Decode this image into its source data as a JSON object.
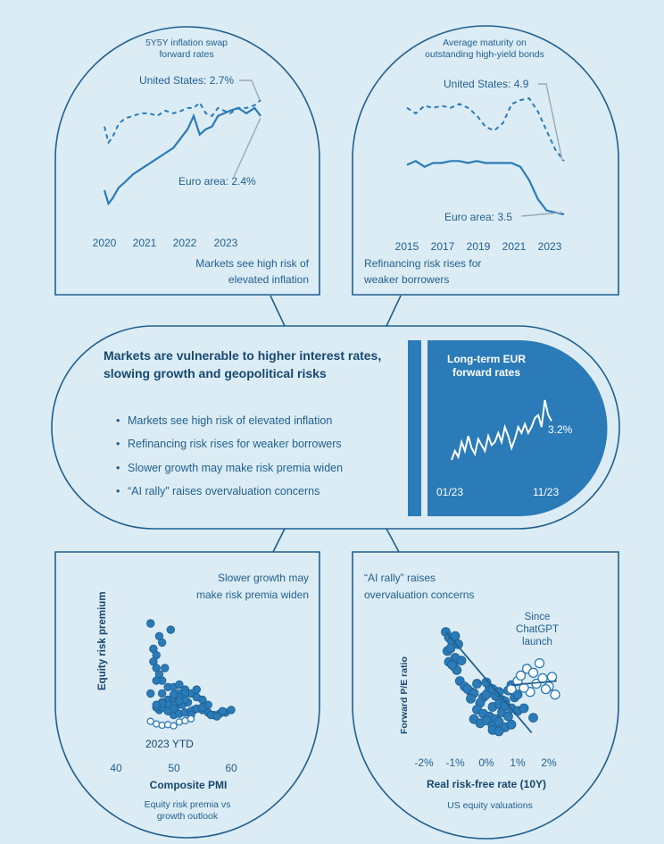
{
  "top_left": {
    "title_lines": [
      "5Y5Y inflation swap",
      "forward rates"
    ],
    "label_us": "United States: 2.7%",
    "label_ea": "Euro area: 2.4%",
    "x_ticks": [
      "2020",
      "2021",
      "2022",
      "2023"
    ],
    "caption_lines": [
      "Markets see high risk of",
      "elevated inflation"
    ]
  },
  "top_right": {
    "title_lines": [
      "Average maturity on",
      "outstanding high-yield bonds"
    ],
    "label_us": "United States: 4.9",
    "label_ea": "Euro area: 3.5",
    "x_ticks": [
      "2015",
      "2017",
      "2019",
      "2021",
      "2023"
    ],
    "caption_lines": [
      "Refinancing risk rises for",
      "weaker borrowers"
    ]
  },
  "center": {
    "headline_lines": [
      "Markets are vulnerable to higher interest rates,",
      "slowing growth and geopolitical risks"
    ],
    "bullets": [
      "Markets see high risk of elevated inflation",
      "Refinancing risk rises for weaker borrowers",
      "Slower growth may make risk premia widen",
      "“AI rally” raises overvaluation concerns"
    ],
    "bullet_marker": "•",
    "panel_title_lines": [
      "Long-term EUR",
      "forward rates"
    ],
    "panel_value": "3.2%",
    "panel_x_start": "01/23",
    "panel_x_end": "11/23"
  },
  "bottom_left": {
    "title_lines": [
      "Slower growth may",
      "make risk premia widen"
    ],
    "ylabel": "Equity risk premium",
    "xlabel": "Composite PMI",
    "annotation": "2023 YTD",
    "x_ticks": [
      "40",
      "50",
      "60"
    ],
    "caption_lines": [
      "Equity risk premia vs",
      "growth outlook"
    ]
  },
  "bottom_right": {
    "title_lines": [
      "“AI rally” raises",
      "overvaluation concerns"
    ],
    "ylabel": "Forward P/E ratio",
    "xlabel": "Real risk-free rate (10Y)",
    "annotation_lines": [
      "Since",
      "ChatGPT",
      "launch"
    ],
    "x_ticks": [
      "-2%",
      "-1%",
      "0%",
      "1%",
      "2%"
    ],
    "caption": "US equity valuations"
  },
  "colors": {
    "background": "#dcecf5",
    "ink": "#1f5f8f",
    "series": "#2a7bb8",
    "panel": "#2a7bb8",
    "leader": "#9aa9b4"
  },
  "chart_data": [
    {
      "type": "line",
      "title": "5Y5Y inflation swap forward rates",
      "x_range": [
        2020,
        2024
      ],
      "series": [
        {
          "name": "United States: 2.7%",
          "style": "dashed",
          "x": [
            2020.0,
            2020.1,
            2020.2,
            2020.35,
            2020.5,
            2020.7,
            2020.9,
            2021.1,
            2021.3,
            2021.5,
            2021.7,
            2021.9,
            2022.05,
            2022.2,
            2022.35,
            2022.5,
            2022.65,
            2022.8,
            2022.95,
            2023.1,
            2023.3,
            2023.5,
            2023.7,
            2023.85
          ],
          "y": [
            2.25,
            1.95,
            2.05,
            2.3,
            2.4,
            2.45,
            2.5,
            2.5,
            2.45,
            2.55,
            2.5,
            2.55,
            2.6,
            2.6,
            2.7,
            2.5,
            2.45,
            2.6,
            2.55,
            2.5,
            2.6,
            2.6,
            2.65,
            2.75
          ]
        },
        {
          "name": "Euro area: 2.4%",
          "style": "solid",
          "x": [
            2020.0,
            2020.1,
            2020.2,
            2020.35,
            2020.5,
            2020.7,
            2020.9,
            2021.1,
            2021.3,
            2021.5,
            2021.7,
            2021.9,
            2022.05,
            2022.2,
            2022.35,
            2022.5,
            2022.65,
            2022.8,
            2022.95,
            2023.1,
            2023.3,
            2023.5,
            2023.7,
            2023.85
          ],
          "y": [
            1.05,
            0.8,
            0.9,
            1.1,
            1.2,
            1.35,
            1.45,
            1.55,
            1.65,
            1.75,
            1.85,
            2.05,
            2.2,
            2.45,
            2.1,
            2.2,
            2.25,
            2.45,
            2.5,
            2.55,
            2.6,
            2.5,
            2.6,
            2.45
          ]
        }
      ]
    },
    {
      "type": "line",
      "title": "Average maturity on outstanding high-yield bonds",
      "x_range": [
        2014.8,
        2024.2
      ],
      "series": [
        {
          "name": "United States: 4.9",
          "style": "dashed",
          "x": [
            2015,
            2015.5,
            2016,
            2016.5,
            2017,
            2017.5,
            2018,
            2018.5,
            2019,
            2019.5,
            2020,
            2020.5,
            2021,
            2021.5,
            2022,
            2022.5,
            2023,
            2023.5,
            2024
          ],
          "y": [
            6.3,
            6.15,
            6.35,
            6.3,
            6.35,
            6.3,
            6.4,
            6.3,
            6.1,
            5.8,
            5.7,
            5.9,
            6.4,
            6.5,
            6.55,
            6.2,
            5.7,
            5.2,
            4.9
          ]
        },
        {
          "name": "Euro area: 3.5",
          "style": "solid",
          "x": [
            2015,
            2015.5,
            2016,
            2016.5,
            2017,
            2017.5,
            2018,
            2018.5,
            2019,
            2019.5,
            2020,
            2020.5,
            2021,
            2021.5,
            2022,
            2022.5,
            2023,
            2023.5,
            2024
          ],
          "y": [
            4.8,
            4.9,
            4.75,
            4.85,
            4.85,
            4.9,
            4.9,
            4.85,
            4.9,
            4.85,
            4.85,
            4.85,
            4.85,
            4.75,
            4.4,
            3.9,
            3.6,
            3.55,
            3.5
          ]
        }
      ]
    },
    {
      "type": "line",
      "title": "Long-term EUR forward rates",
      "x": [
        0,
        4,
        8,
        12,
        16,
        20,
        24,
        28,
        32,
        36,
        40,
        44,
        48,
        52,
        56,
        60,
        64,
        68,
        72,
        76,
        80,
        84,
        88,
        92,
        96,
        100,
        104,
        108,
        112,
        116,
        120
      ],
      "y": [
        2.55,
        2.7,
        2.6,
        2.85,
        2.7,
        2.95,
        2.75,
        2.65,
        2.9,
        2.8,
        2.7,
        2.95,
        2.8,
        2.85,
        3.0,
        2.85,
        3.1,
        2.95,
        2.75,
        2.9,
        3.1,
        3.0,
        3.15,
        3.0,
        3.1,
        3.25,
        3.3,
        3.1,
        3.55,
        3.3,
        3.2
      ]
    },
    {
      "type": "scatter",
      "title": "Equity risk premia vs growth outlook",
      "xlabel": "Composite PMI",
      "ylabel": "Equity risk premium",
      "x_range": [
        36,
        65
      ],
      "series": [
        {
          "name": "",
          "style": "filled",
          "x": [
            46,
            47.5,
            46.5,
            49.5,
            47,
            48,
            46.5,
            48.5,
            47,
            47.5,
            48,
            49,
            50,
            46,
            48,
            47,
            49,
            51,
            50,
            49,
            48,
            47.5,
            51,
            52,
            53,
            54,
            55,
            50.5,
            51.5,
            52.5,
            53.5,
            49.5,
            50,
            51,
            52,
            53,
            55,
            56,
            57,
            58,
            59,
            60,
            54,
            52,
            51,
            50,
            50,
            49,
            48,
            47,
            53,
            54,
            55,
            56,
            52,
            51,
            50,
            49,
            48,
            47,
            56.5,
            57.5,
            58.5
          ],
          "y": [
            9,
            8,
            7,
            8.5,
            6.5,
            7.5,
            6,
            5.5,
            5.5,
            5,
            4.5,
            4,
            4,
            3.5,
            3.5,
            4.5,
            3,
            3.5,
            3,
            2.5,
            2.8,
            2.2,
            4.2,
            3.8,
            3.5,
            3.2,
            3,
            2.5,
            2.6,
            2.8,
            2.2,
            2.2,
            1.8,
            1.9,
            2,
            2.1,
            2.2,
            2,
            1.8,
            1.9,
            2,
            2.2,
            3.8,
            3.5,
            3.2,
            3.4,
            2.6,
            2.6,
            2.4,
            2.4,
            1.8,
            2.3,
            2.4,
            2.6,
            3,
            2.9,
            2.3,
            2.1,
            2.7,
            2.6,
            1.8,
            1.7,
            2.1
          ]
        },
        {
          "name": "2023 YTD",
          "style": "open",
          "x": [
            46,
            47,
            48,
            49,
            50,
            51,
            52,
            53
          ],
          "y": [
            1.3,
            1.1,
            1.0,
            1.05,
            0.95,
            1.25,
            1.35,
            1.5
          ]
        }
      ]
    },
    {
      "type": "scatter",
      "title": "US equity valuations",
      "xlabel": "Real risk-free rate (10Y)",
      "ylabel": "Forward P/E ratio",
      "x_range": [
        -2.3,
        2.5
      ],
      "series": [
        {
          "name": "",
          "style": "filled",
          "x": [
            -1.3,
            -1.2,
            -1.1,
            -1.0,
            -0.9,
            -1.25,
            -1.15,
            -1.0,
            -0.8,
            -1.2,
            -1.05,
            -0.95,
            -1.1,
            -0.85,
            -0.7,
            -0.5,
            -0.3,
            -0.1,
            0.1,
            0.3,
            0.5,
            0.7,
            0.9,
            -0.6,
            -0.4,
            -0.2,
            0.0,
            0.2,
            0.4,
            0.6,
            0.8,
            1.0,
            -0.5,
            -0.3,
            -0.1,
            0.1,
            0.3,
            0.5,
            0.7,
            -0.4,
            -0.2,
            0.0,
            0.2,
            0.4,
            0.6,
            0.8,
            0.0,
            0.2,
            0.4,
            0.6,
            0.8,
            1.0,
            1.2,
            1.5,
            0.2,
            0.4
          ],
          "y": [
            21.2,
            20.8,
            20.5,
            20.9,
            20.3,
            19.8,
            20.0,
            19.3,
            19.1,
            19.0,
            18.7,
            18.4,
            18.8,
            17.6,
            17.2,
            16.8,
            17.4,
            16.4,
            17.1,
            16.5,
            16.2,
            16.9,
            16.4,
            17.0,
            16.7,
            16.0,
            16.6,
            15.7,
            15.9,
            16.1,
            15.6,
            15.4,
            16.3,
            15.5,
            15.2,
            15.0,
            14.8,
            15.3,
            15.0,
            14.8,
            14.5,
            14.7,
            14.3,
            14.6,
            14.2,
            14.4,
            17.5,
            17.0,
            16.8,
            15.8,
            17.3,
            16.6,
            15.6,
            14.9,
            14.0,
            13.9
          ]
        },
        {
          "name": "Since ChatGPT launch",
          "style": "open",
          "x": [
            0.8,
            1.0,
            1.1,
            1.3,
            1.5,
            1.6,
            1.8,
            2.0,
            2.2,
            1.4,
            1.7,
            1.9,
            1.2,
            2.1
          ],
          "y": [
            17.0,
            17.6,
            18.0,
            18.5,
            18.2,
            17.4,
            17.8,
            17.2,
            16.6,
            16.8,
            18.9,
            17.0,
            17.1,
            17.9
          ]
        }
      ]
    }
  ]
}
